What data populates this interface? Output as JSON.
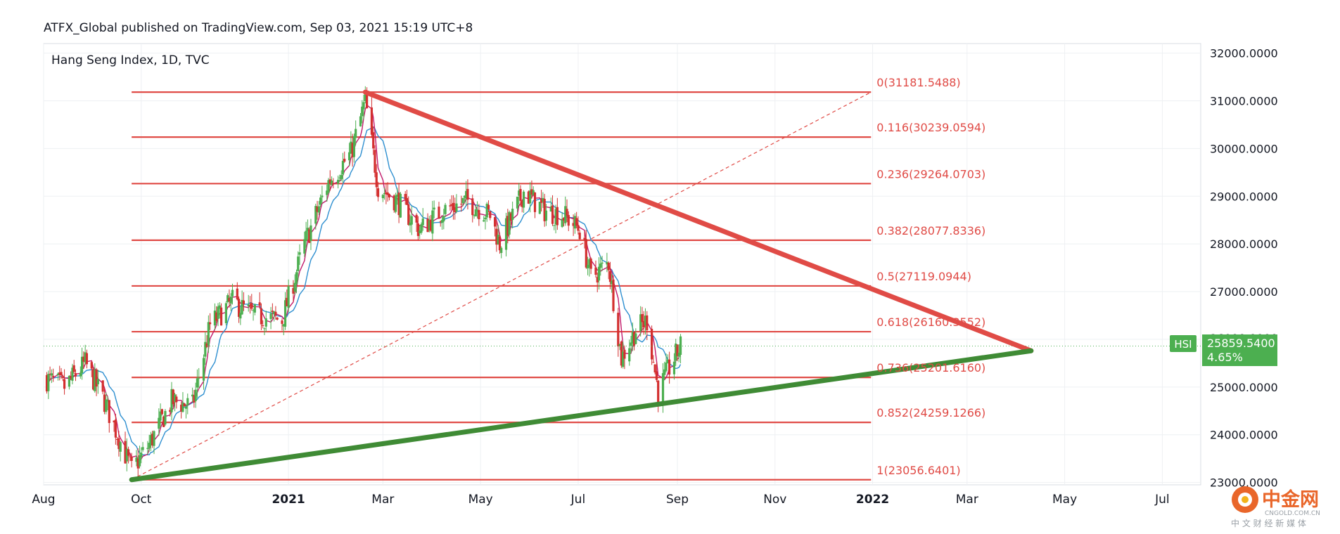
{
  "header": {
    "published_line": "ATFX_Global published on TradingView.com, Sep 03, 2021 15:19 UTC+8"
  },
  "chart_data": {
    "type": "candlestick",
    "title": "Hang Seng Index, 1D, TVC",
    "symbol_tag": "HSI",
    "last_price_label": "25859.5400",
    "change_label": "4.65%",
    "overlapped_price_label": "26000.0000",
    "ylim": [
      22950,
      32200
    ],
    "y_ticks": [
      {
        "value": 32000,
        "label": "32000.0000"
      },
      {
        "value": 31000,
        "label": "31000.0000"
      },
      {
        "value": 30000,
        "label": "30000.0000"
      },
      {
        "value": 29000,
        "label": "29000.0000"
      },
      {
        "value": 28000,
        "label": "28000.0000"
      },
      {
        "value": 27000,
        "label": "27000.0000"
      },
      {
        "value": 25000,
        "label": "25000.0000"
      },
      {
        "value": 24000,
        "label": "24000.0000"
      },
      {
        "value": 23000,
        "label": "23000.0000"
      }
    ],
    "x_range": [
      "2020-08-01",
      "2022-07-25"
    ],
    "x_ticks": [
      {
        "date": "2020-08-01",
        "label": "Aug",
        "bold": false
      },
      {
        "date": "2020-10-01",
        "label": "Oct",
        "bold": false
      },
      {
        "date": "2021-01-01",
        "label": "2021",
        "bold": true
      },
      {
        "date": "2021-03-01",
        "label": "Mar",
        "bold": false
      },
      {
        "date": "2021-05-01",
        "label": "May",
        "bold": false
      },
      {
        "date": "2021-07-01",
        "label": "Jul",
        "bold": false
      },
      {
        "date": "2021-09-01",
        "label": "Sep",
        "bold": false
      },
      {
        "date": "2021-11-01",
        "label": "Nov",
        "bold": false
      },
      {
        "date": "2022-01-01",
        "label": "2022",
        "bold": true
      },
      {
        "date": "2022-03-01",
        "label": "Mar",
        "bold": false
      },
      {
        "date": "2022-05-01",
        "label": "May",
        "bold": false
      },
      {
        "date": "2022-07-01",
        "label": "Jul",
        "bold": false
      }
    ],
    "fib_start_date": "2020-09-25",
    "fib_end_date": "2021-12-31",
    "fib_levels": [
      {
        "ratio": "0",
        "value": 31181.5488,
        "label": "0(31181.5488)"
      },
      {
        "ratio": "0.116",
        "value": 30239.0594,
        "label": "0.116(30239.0594)"
      },
      {
        "ratio": "0.236",
        "value": 29264.0703,
        "label": "0.236(29264.0703)"
      },
      {
        "ratio": "0.382",
        "value": 28077.8336,
        "label": "0.382(28077.8336)"
      },
      {
        "ratio": "0.5",
        "value": 27119.0944,
        "label": "0.5(27119.0944)"
      },
      {
        "ratio": "0.618",
        "value": 26160.3552,
        "label": "0.618(26160.3552)"
      },
      {
        "ratio": "0.736",
        "value": 25201.616,
        "label": "0.736(25201.6160)"
      },
      {
        "ratio": "0.852",
        "value": 24259.1266,
        "label": "0.852(24259.1266)"
      },
      {
        "ratio": "1",
        "value": 23056.6401,
        "label": "1(23056.6401)"
      }
    ],
    "fib_diagonal": [
      {
        "date": "2020-09-25",
        "value": 23056.64
      },
      {
        "date": "2021-12-31",
        "value": 31181.55
      }
    ],
    "resistance_line": [
      {
        "date": "2021-02-18",
        "value": 31181.55
      },
      {
        "date": "2022-04-10",
        "value": 25760
      }
    ],
    "support_line": [
      {
        "date": "2020-09-25",
        "value": 23056.64
      },
      {
        "date": "2022-04-10",
        "value": 25760
      }
    ],
    "last_price_value": 25859.54,
    "price_path": [
      {
        "date": "2020-08-01",
        "value": 25200
      },
      {
        "date": "2020-08-14",
        "value": 25000
      },
      {
        "date": "2020-08-27",
        "value": 25500
      },
      {
        "date": "2020-09-08",
        "value": 24700
      },
      {
        "date": "2020-09-25",
        "value": 23250
      },
      {
        "date": "2020-10-06",
        "value": 23800
      },
      {
        "date": "2020-10-20",
        "value": 24700
      },
      {
        "date": "2020-11-02",
        "value": 24600
      },
      {
        "date": "2020-11-13",
        "value": 26300
      },
      {
        "date": "2020-11-27",
        "value": 26800
      },
      {
        "date": "2020-12-10",
        "value": 26500
      },
      {
        "date": "2020-12-28",
        "value": 26400
      },
      {
        "date": "2021-01-11",
        "value": 28000
      },
      {
        "date": "2021-01-26",
        "value": 29300
      },
      {
        "date": "2021-02-09",
        "value": 29900
      },
      {
        "date": "2021-02-18",
        "value": 31000
      },
      {
        "date": "2021-02-26",
        "value": 29200
      },
      {
        "date": "2021-03-10",
        "value": 28900
      },
      {
        "date": "2021-03-24",
        "value": 28300
      },
      {
        "date": "2021-04-07",
        "value": 28700
      },
      {
        "date": "2021-04-23",
        "value": 28900
      },
      {
        "date": "2021-05-07",
        "value": 28600
      },
      {
        "date": "2021-05-13",
        "value": 28000
      },
      {
        "date": "2021-05-28",
        "value": 29100
      },
      {
        "date": "2021-06-10",
        "value": 28700
      },
      {
        "date": "2021-06-22",
        "value": 28600
      },
      {
        "date": "2021-07-02",
        "value": 28300
      },
      {
        "date": "2021-07-09",
        "value": 27300
      },
      {
        "date": "2021-07-20",
        "value": 27600
      },
      {
        "date": "2021-07-28",
        "value": 25600
      },
      {
        "date": "2021-08-06",
        "value": 26200
      },
      {
        "date": "2021-08-13",
        "value": 26400
      },
      {
        "date": "2021-08-20",
        "value": 24900
      },
      {
        "date": "2021-08-27",
        "value": 25400
      },
      {
        "date": "2021-09-03",
        "value": 25860
      }
    ],
    "colors": {
      "fib_line": "#e04b46",
      "fib_label": "#e04b46",
      "resistance": "#e04b46",
      "support": "#3f8b35",
      "last_price_bg": "#4caf50",
      "candle_up": "#4caf50",
      "candle_down": "#d32f2f",
      "ma_fast": "#c21a6b",
      "ma_slow": "#2e8fd0",
      "grid": "#eef0f3"
    }
  },
  "watermark": {
    "brand_cn": "中金网",
    "brand_url": "CNGOLD.COM.CN",
    "tagline_cn": "中 文 财 经 新 媒 体"
  }
}
